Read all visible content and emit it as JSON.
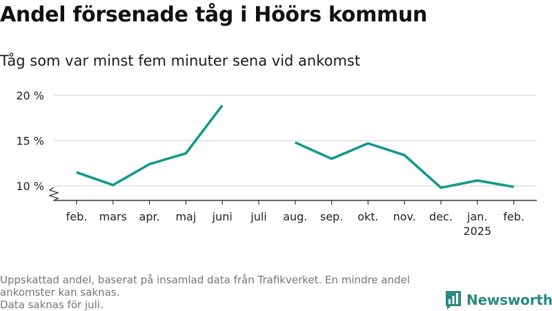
{
  "title": "Andel försenade tåg i Höörs kommun",
  "subtitle": "Tåg som var minst fem minuter sena vid ankomst",
  "footnote_lines": [
    "Uppskattad andel, baserat på insamlad data från Trafikverket. En mindre andel ankomster kan saknas.",
    "Data saknas för juli."
  ],
  "logo": {
    "text": "Newsworthy",
    "icon": "newsworthy-chart-icon",
    "color": "#2b8a83"
  },
  "chart_data": {
    "type": "line",
    "categories": [
      "feb.",
      "mars",
      "apr.",
      "maj",
      "juni",
      "juli",
      "aug.",
      "sep.",
      "okt.",
      "nov.",
      "dec.",
      "jan.",
      "feb."
    ],
    "year_labels": {
      "11": "2025"
    },
    "values": [
      11.5,
      10.1,
      12.4,
      13.6,
      18.9,
      null,
      14.8,
      13.0,
      14.7,
      13.4,
      9.8,
      10.6,
      9.9
    ],
    "ylim": [
      8.4,
      20
    ],
    "yticks": [
      10,
      15,
      20
    ],
    "ytick_labels": [
      "10 %",
      "15 %",
      "20 %"
    ],
    "axis_break": true,
    "color": "#13998c",
    "grid": true
  }
}
